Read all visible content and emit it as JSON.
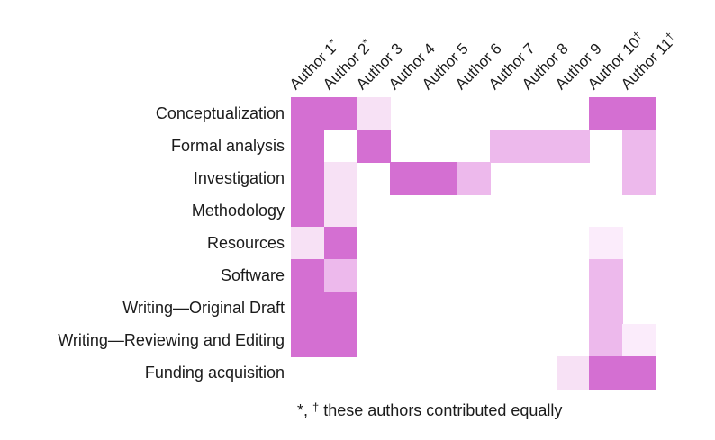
{
  "figure": {
    "footnote": {
      "star": "*, ",
      "dagger": "†",
      "text": " these authors contributed equally"
    },
    "colors": {
      "dark": "#d46fd2",
      "medium": "#edb9ec",
      "pale": "#f7e1f5",
      "vpale": "#fbecfb",
      "empty": "#ffffff",
      "text": "#1b1b1b"
    }
  },
  "chart_data": {
    "type": "heatmap",
    "title": "",
    "legend_position": "none",
    "grid": false,
    "columns": [
      {
        "name": "Author 1",
        "marker": "*"
      },
      {
        "name": "Author 2",
        "marker": "*"
      },
      {
        "name": "Author 3",
        "marker": ""
      },
      {
        "name": "Author 4",
        "marker": ""
      },
      {
        "name": "Author 5",
        "marker": ""
      },
      {
        "name": "Author 6",
        "marker": ""
      },
      {
        "name": "Author 7",
        "marker": ""
      },
      {
        "name": "Author 8",
        "marker": ""
      },
      {
        "name": "Author 9",
        "marker": ""
      },
      {
        "name": "Author 10",
        "marker": "†"
      },
      {
        "name": "Author 11",
        "marker": "†"
      }
    ],
    "rows": [
      "Conceptualization",
      "Formal analysis",
      "Investigation",
      "Methodology",
      "Resources",
      "Software",
      "Writing—Original Draft",
      "Writing—Reviewing and Editing",
      "Funding acquisition"
    ],
    "values": [
      [
        "dark",
        "dark",
        "pale",
        "",
        "",
        "",
        "",
        "",
        "",
        "dark",
        "dark"
      ],
      [
        "dark",
        "",
        "dark",
        "",
        "",
        "",
        "medium",
        "medium",
        "medium",
        "",
        "medium"
      ],
      [
        "dark",
        "pale",
        "",
        "dark",
        "dark",
        "medium",
        "",
        "",
        "",
        "",
        "medium"
      ],
      [
        "dark",
        "pale",
        "",
        "",
        "",
        "",
        "",
        "",
        "",
        "",
        ""
      ],
      [
        "pale",
        "dark",
        "",
        "",
        "",
        "",
        "",
        "",
        "",
        "vpale",
        ""
      ],
      [
        "dark",
        "medium",
        "",
        "",
        "",
        "",
        "",
        "",
        "",
        "medium",
        ""
      ],
      [
        "dark",
        "dark",
        "",
        "",
        "",
        "",
        "",
        "",
        "",
        "medium",
        ""
      ],
      [
        "dark",
        "dark",
        "",
        "",
        "",
        "",
        "",
        "",
        "",
        "medium",
        "vpale"
      ],
      [
        "",
        "",
        "",
        "",
        "",
        "",
        "",
        "",
        "pale",
        "dark",
        "dark"
      ]
    ]
  }
}
